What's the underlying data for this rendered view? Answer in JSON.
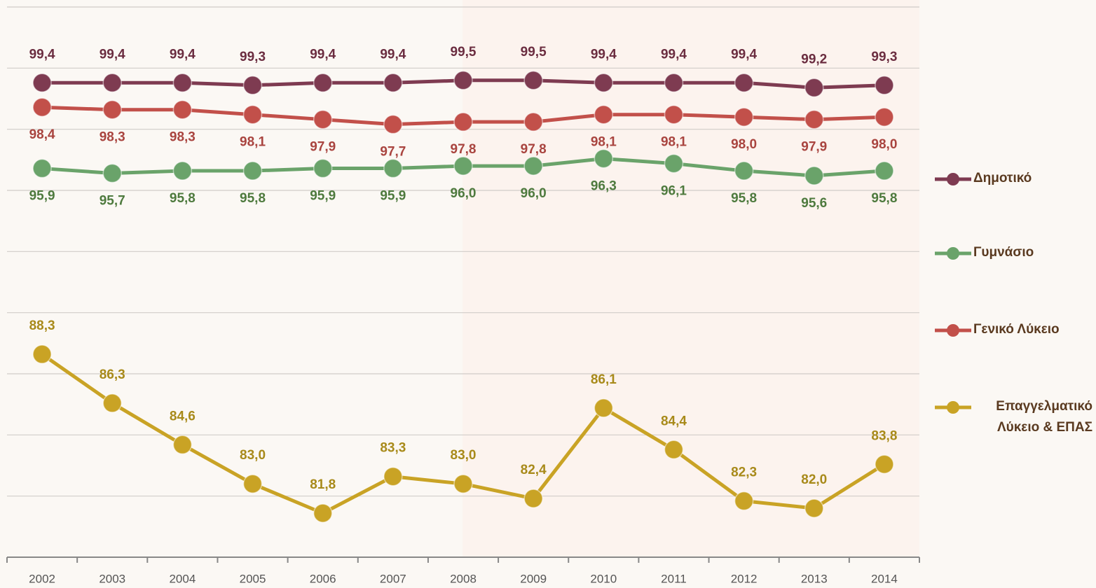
{
  "chart_data": {
    "type": "line",
    "categories": [
      "2002",
      "2003",
      "2004",
      "2005",
      "2006",
      "2007",
      "2008",
      "2009",
      "2010",
      "2011",
      "2012",
      "2013",
      "2014"
    ],
    "series": [
      {
        "name": "Δημοτικό",
        "color": "#7e3b51",
        "label_color": "#6b2d40",
        "label_position": "above",
        "values": [
          99.4,
          99.4,
          99.4,
          99.3,
          99.4,
          99.4,
          99.5,
          99.5,
          99.4,
          99.4,
          99.4,
          99.2,
          99.3
        ],
        "value_labels": [
          "99,4",
          "99,4",
          "99,4",
          "99,3",
          "99,4",
          "99,4",
          "99,5",
          "99,5",
          "99,4",
          "99,4",
          "99,4",
          "99,2",
          "99,3"
        ]
      },
      {
        "name": "Γυμνάσιο",
        "color": "#6aa36a",
        "label_color": "#4e7a3e",
        "label_position": "below",
        "values": [
          95.9,
          95.7,
          95.8,
          95.8,
          95.9,
          95.9,
          96.0,
          96.0,
          96.3,
          96.1,
          95.8,
          95.6,
          95.8
        ],
        "value_labels": [
          "95,9",
          "95,7",
          "95,8",
          "95,8",
          "95,9",
          "95,9",
          "96,0",
          "96,0",
          "96,3",
          "96,1",
          "95,8",
          "95,6",
          "95,8"
        ]
      },
      {
        "name": "Γενικό Λύκειο",
        "color": "#c2504a",
        "label_color": "#a9443f",
        "label_position": "below",
        "values": [
          98.4,
          98.3,
          98.3,
          98.1,
          97.9,
          97.7,
          97.8,
          97.8,
          98.1,
          98.1,
          98.0,
          97.9,
          98.0
        ],
        "value_labels": [
          "98,4",
          "98,3",
          "98,3",
          "98,1",
          "97,9",
          "97,7",
          "97,8",
          "97,8",
          "98,1",
          "98,1",
          "98,0",
          "97,9",
          "98,0"
        ]
      },
      {
        "name": "Επαγγελματικό Λύκειο & ΕΠΑΣ",
        "color": "#c9a325",
        "label_color": "#a88a1a",
        "label_position": "above",
        "values": [
          88.3,
          86.3,
          84.6,
          83.0,
          81.8,
          83.3,
          83.0,
          82.4,
          86.1,
          84.4,
          82.3,
          82.0,
          83.8
        ],
        "value_labels": [
          "88,3",
          "86,3",
          "84,6",
          "83,0",
          "81,8",
          "83,3",
          "83,0",
          "82,4",
          "86,1",
          "84,4",
          "82,3",
          "82,0",
          "83,8"
        ]
      }
    ],
    "ylim": [
      80,
      102.5
    ],
    "yticks": [
      80,
      82.5,
      85,
      87.5,
      90,
      92.5,
      95,
      97.5,
      100,
      102.5
    ],
    "grid": true,
    "legend": "right"
  }
}
